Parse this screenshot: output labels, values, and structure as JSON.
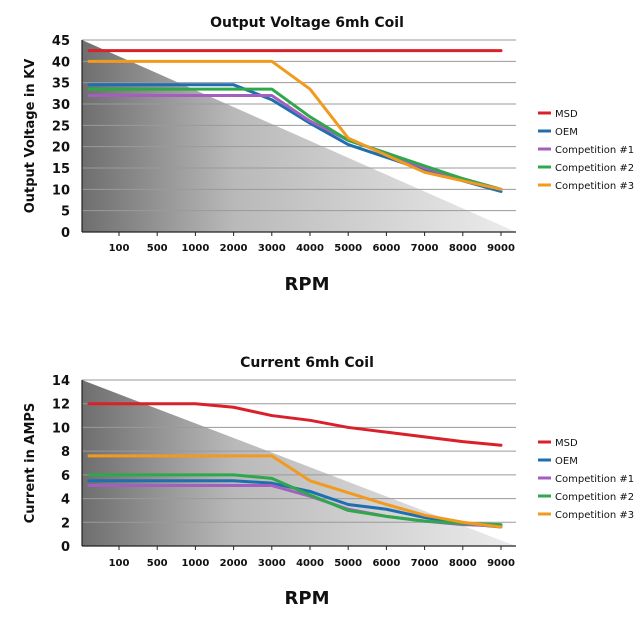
{
  "colors": {
    "MSD": "#d9202b",
    "OEM": "#1f6fb0",
    "Competition #1": "#a35fc0",
    "Competition #2": "#2ea84a",
    "Competition #3": "#f29a1f"
  },
  "chart_data": [
    {
      "type": "line",
      "title": "Output Voltage 6mh Coil",
      "xlabel": "RPM",
      "ylabel": "Output Voltage in KV",
      "categories": [
        "100",
        "500",
        "1000",
        "2000",
        "3000",
        "4000",
        "5000",
        "6000",
        "7000",
        "8000",
        "9000"
      ],
      "yticks": [
        0,
        5,
        10,
        15,
        20,
        25,
        30,
        35,
        40,
        45
      ],
      "ylim": [
        0,
        45
      ],
      "grid": true,
      "legend": "right",
      "series": [
        {
          "name": "MSD",
          "values": [
            42.5,
            42.5,
            42.5,
            42.5,
            42.5,
            42.5,
            42.5,
            42.5,
            42.5,
            42.5,
            42.5
          ]
        },
        {
          "name": "OEM",
          "values": [
            34.5,
            34.5,
            34.5,
            34.5,
            31,
            25.5,
            20.5,
            17.5,
            14.5,
            12,
            9.5
          ]
        },
        {
          "name": "Competition #1",
          "values": [
            32,
            32,
            32,
            32,
            32,
            26,
            21.5,
            18.5,
            15,
            12.5,
            10
          ]
        },
        {
          "name": "Competition #2",
          "values": [
            33.5,
            33.5,
            33.5,
            33.5,
            33.5,
            27,
            21.5,
            18.5,
            15.5,
            12.5,
            10
          ]
        },
        {
          "name": "Competition #3",
          "values": [
            40,
            40,
            40,
            40,
            40,
            33.5,
            22,
            18,
            14,
            12,
            10
          ]
        }
      ]
    },
    {
      "type": "line",
      "title": "Current 6mh Coil",
      "xlabel": "RPM",
      "ylabel": "Current in AMPS",
      "categories": [
        "100",
        "500",
        "1000",
        "2000",
        "3000",
        "4000",
        "5000",
        "6000",
        "7000",
        "8000",
        "9000"
      ],
      "yticks": [
        0,
        2,
        4,
        6,
        8,
        10,
        12,
        14
      ],
      "ylim": [
        0,
        14
      ],
      "grid": true,
      "legend": "right",
      "series": [
        {
          "name": "MSD",
          "values": [
            12,
            12,
            12,
            11.7,
            11,
            10.6,
            10,
            9.6,
            9.2,
            8.8,
            8.5
          ]
        },
        {
          "name": "OEM",
          "values": [
            5.5,
            5.5,
            5.5,
            5.5,
            5.3,
            4.6,
            3.5,
            3.1,
            2.4,
            1.9,
            1.6
          ]
        },
        {
          "name": "Competition #1",
          "values": [
            5.1,
            5.1,
            5.1,
            5.1,
            5.1,
            4.2,
            3.1,
            2.5,
            2.1,
            1.8,
            1.7
          ]
        },
        {
          "name": "Competition #2",
          "values": [
            6,
            6,
            6,
            6,
            5.7,
            4.3,
            3,
            2.5,
            2.1,
            1.9,
            1.8
          ]
        },
        {
          "name": "Competition #3",
          "values": [
            7.6,
            7.6,
            7.6,
            7.6,
            7.6,
            5.5,
            4.5,
            3.5,
            2.6,
            2,
            1.6
          ]
        }
      ]
    }
  ]
}
